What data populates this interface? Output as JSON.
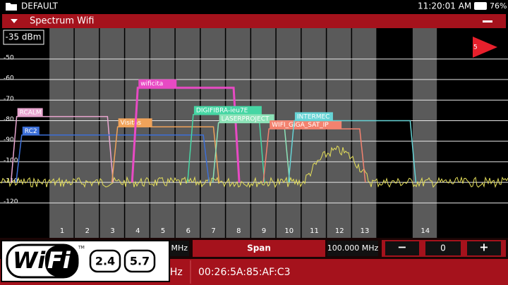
{
  "status_bar": {
    "profile": "DEFAULT",
    "time": "11:20:01 AM",
    "battery": "76%"
  },
  "panel": {
    "title": "Spectrum Wifi",
    "reference_level": "-35 dBm",
    "marker": "5"
  },
  "spectrum": {
    "ylim": [
      -137,
      -35
    ],
    "yticks": [
      -50,
      -60,
      -70,
      -80,
      -90,
      -100,
      -110,
      -120
    ],
    "floor": -110,
    "channels": [
      {
        "value": 2412,
        "label": "1"
      },
      {
        "value": 2417,
        "label": "2"
      },
      {
        "value": 2422,
        "label": "3"
      },
      {
        "value": 2427,
        "label": "4"
      },
      {
        "value": 2432,
        "label": "5"
      },
      {
        "value": 2437,
        "label": "6"
      },
      {
        "value": 2442,
        "label": "7"
      },
      {
        "value": 2447,
        "label": "8"
      },
      {
        "value": 2452,
        "label": "9"
      },
      {
        "value": 2457,
        "label": "10"
      },
      {
        "value": 2462,
        "label": "11"
      },
      {
        "value": 2467,
        "label": "12"
      },
      {
        "value": 2472,
        "label": "13"
      },
      {
        "value": 2484,
        "label": "14"
      }
    ],
    "networks": [
      {
        "name": "RCALM",
        "color": "#e9a6d0",
        "level": -78,
        "from": 2403,
        "to": 2421
      },
      {
        "name": "RC2",
        "color": "#3c6fd8",
        "level": -87,
        "from": 2404,
        "to": 2440
      },
      {
        "name": "Visitas",
        "color": "#f0a35a",
        "level": -83,
        "from": 2423,
        "to": 2442
      },
      {
        "name": "wificita",
        "color": "#e84ac4",
        "level": -64,
        "from": 2427,
        "to": 2446
      },
      {
        "name": "DIGIFIBRA-ieu7E",
        "color": "#46d6a4",
        "level": -77,
        "from": 2438,
        "to": 2451
      },
      {
        "name": "LASERPROJECT",
        "color": "#8de3b8",
        "level": -81,
        "from": 2443,
        "to": 2456
      },
      {
        "name": "WIFI_GIGA_SAT_IP",
        "color": "#f3826f",
        "level": -84,
        "from": 2453,
        "to": 2471
      },
      {
        "name": "INTERMEC",
        "color": "#66d4d6",
        "level": -80,
        "from": 2458,
        "to": 2481
      }
    ]
  },
  "controls": {
    "center_unit": "MHz",
    "span_label": "Span",
    "span_value": "100.000 MHz",
    "minus": "−",
    "offset": "0",
    "plus": "+"
  },
  "footer": {
    "band_unit": "GHz",
    "mac": "00:26:5A:85:AF:C3"
  },
  "logo": {
    "wi": "Wi",
    "fi": "Fi",
    "tm": "TM",
    "bands": [
      "2.4",
      "5.7"
    ]
  }
}
